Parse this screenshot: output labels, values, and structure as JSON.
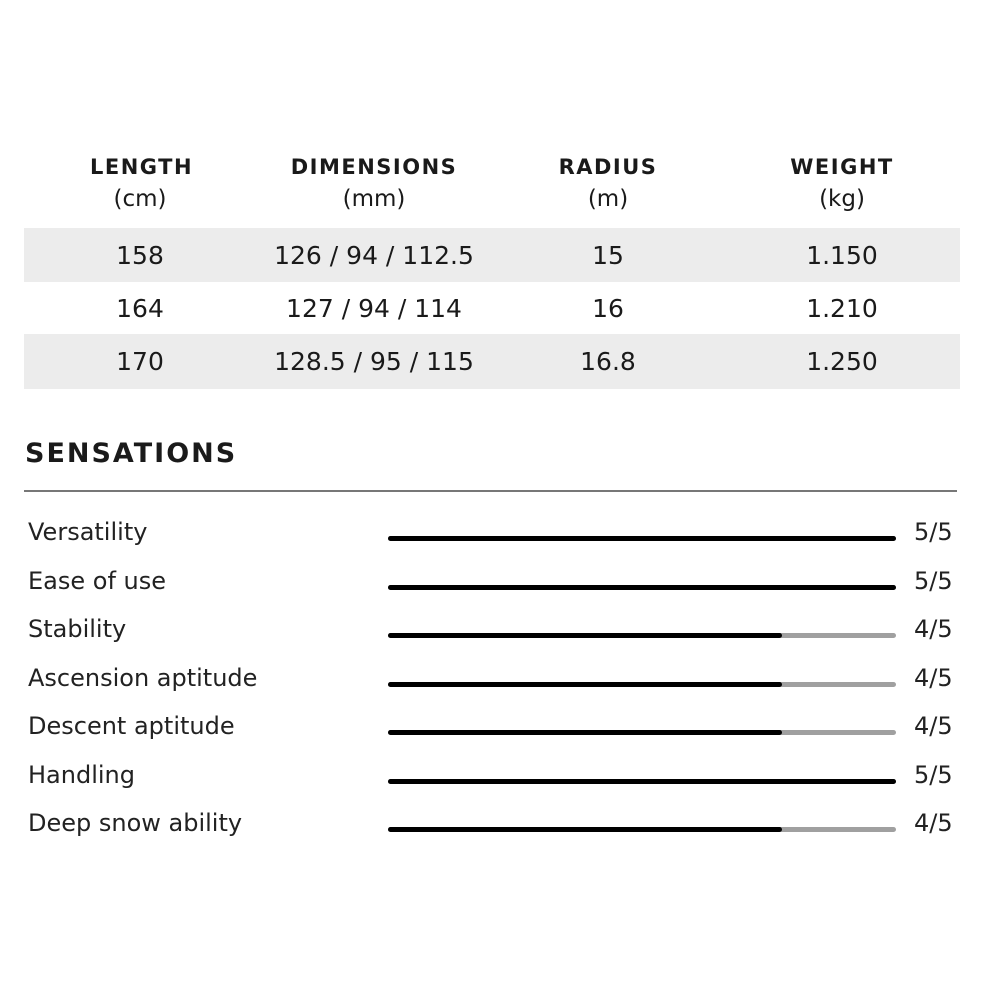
{
  "specs": {
    "headers": [
      {
        "label": "LENGTH",
        "unit": "(cm)"
      },
      {
        "label": "DIMENSIONS",
        "unit": "(mm)"
      },
      {
        "label": "RADIUS",
        "unit": "(m)"
      },
      {
        "label": "WEIGHT",
        "unit": "(kg)"
      }
    ],
    "rows": [
      [
        "158",
        "126 / 94 / 112.5",
        "15",
        "1.150"
      ],
      [
        "164",
        "127 / 94 / 114",
        "16",
        "1.210"
      ],
      [
        "170",
        "128.5 / 95 / 115",
        "16.8",
        "1.250"
      ]
    ]
  },
  "sensations": {
    "title": "SENSATIONS",
    "colors": {
      "filled": "#000000",
      "empty": "#a0a0a0"
    },
    "items": [
      {
        "label": "Versatility",
        "value": 5,
        "max": 5,
        "display": "5/5"
      },
      {
        "label": "Ease of use",
        "value": 5,
        "max": 5,
        "display": "5/5"
      },
      {
        "label": "Stability",
        "value": 4,
        "max": 5,
        "display": "4/5"
      },
      {
        "label": "Ascension aptitude",
        "value": 4,
        "max": 5,
        "display": "4/5"
      },
      {
        "label": "Descent aptitude",
        "value": 4,
        "max": 5,
        "display": "4/5"
      },
      {
        "label": "Handling",
        "value": 5,
        "max": 5,
        "display": "5/5"
      },
      {
        "label": "Deep snow ability",
        "value": 4,
        "max": 5,
        "display": "4/5"
      }
    ]
  }
}
